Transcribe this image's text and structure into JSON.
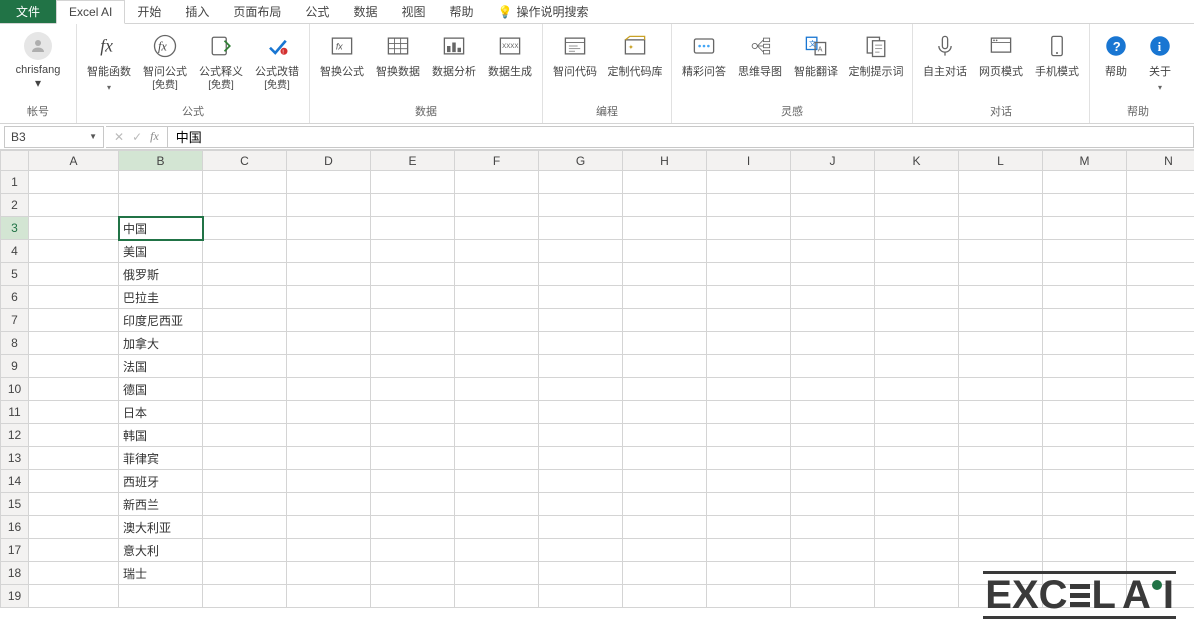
{
  "tabs": {
    "file": "文件",
    "active": "Excel AI",
    "others": [
      "开始",
      "插入",
      "页面布局",
      "公式",
      "数据",
      "视图",
      "帮助"
    ],
    "tell_me": "操作说明搜索"
  },
  "account": {
    "name": "chrisfang",
    "group_label": "帐号"
  },
  "ribbon": {
    "formula": {
      "label": "公式",
      "smart_fn": "智能函数",
      "ask_formula": "智问公式",
      "ask_formula_sub": "[免费]",
      "explain": "公式释义",
      "explain_sub": "[免费]",
      "fix": "公式改错",
      "fix_sub": "[免费]"
    },
    "data": {
      "label": "数据",
      "swap": "智换公式",
      "swap_data": "智换数据",
      "analysis": "数据分析",
      "gen": "数据生成"
    },
    "code": {
      "label": "编程",
      "ask_code": "智问代码",
      "lib": "定制代码库"
    },
    "inspire": {
      "label": "灵感",
      "qa": "精彩问答",
      "mindmap": "思维导图",
      "translate": "智能翻译",
      "prompt": "定制提示词"
    },
    "chat": {
      "label": "对话",
      "auto": "自主对话",
      "web": "网页模式",
      "mobile": "手机模式"
    },
    "help": {
      "label": "帮助",
      "help": "帮助",
      "about": "关于"
    }
  },
  "formula_bar": {
    "cell_ref": "B3",
    "formula": "中国"
  },
  "columns": [
    "A",
    "B",
    "C",
    "D",
    "E",
    "F",
    "G",
    "H",
    "I",
    "J",
    "K",
    "L",
    "M",
    "N"
  ],
  "selected": {
    "col": "B",
    "row": 3
  },
  "cells": {
    "B3": "中国",
    "B4": "美国",
    "B5": "俄罗斯",
    "B6": "巴拉圭",
    "B7": "印度尼西亚",
    "B8": "加拿大",
    "B9": "法国",
    "B10": "德国",
    "B11": "日本",
    "B12": "韩国",
    "B13": "菲律宾",
    "B14": "西班牙",
    "B15": "新西兰",
    "B16": "澳大利亚",
    "B17": "意大利",
    "B18": "瑞士"
  },
  "row_count": 19,
  "watermark": {
    "text_left": "EXC",
    "text_right": "L",
    "ai": "A"
  },
  "colors": {
    "brand": "#217346",
    "grid": "#d4d4d4",
    "header_bg": "#f3f2f1"
  }
}
